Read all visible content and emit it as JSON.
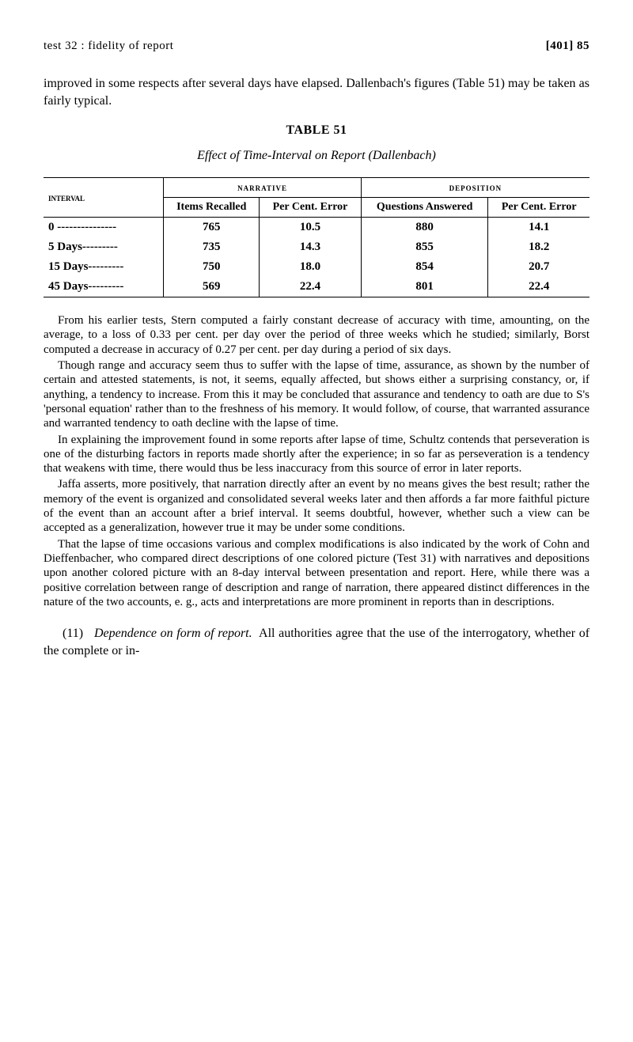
{
  "header": {
    "left": "test 32 : fidelity of report",
    "right": "[401] 85"
  },
  "intro": "improved in some respects after several days have elapsed. Dallenbach's figures (Table 51) may be taken as fairly typical.",
  "table": {
    "title": "TABLE 51",
    "caption": "Effect of Time-Interval on Report (Dallenbach)",
    "interval_header": "interval",
    "groups": [
      "narrative",
      "deposition"
    ],
    "columns": [
      "Items Recalled",
      "Per Cent. Error",
      "Questions Answered",
      "Per Cent. Error"
    ],
    "rows": [
      {
        "interval": "0 ---------------",
        "cells": [
          "765",
          "10.5",
          "880",
          "14.1"
        ]
      },
      {
        "interval": "5 Days---------",
        "cells": [
          "735",
          "14.3",
          "855",
          "18.2"
        ]
      },
      {
        "interval": "15 Days---------",
        "cells": [
          "750",
          "18.0",
          "854",
          "20.7"
        ]
      },
      {
        "interval": "45 Days---------",
        "cells": [
          "569",
          "22.4",
          "801",
          "22.4"
        ]
      }
    ]
  },
  "paras": {
    "p1": "From his earlier tests, Stern computed a fairly constant decrease of accuracy with time, amounting, on the average, to a loss of 0.33 per cent. per day over the period of three weeks which he studied; similarly, Borst computed a decrease in accuracy of 0.27 per cent. per day during a period of six days.",
    "p2": "Though range and accuracy seem thus to suffer with the lapse of time, assurance, as shown by the number of certain and attested statements, is not, it seems, equally affected, but shows either a surprising constancy, or, if anything, a tendency to increase. From this it may be concluded that assurance and tendency to oath are due to S's 'personal equation' rather than to the freshness of his memory. It would follow, of course, that warranted assurance and warranted tendency to oath decline with the lapse of time.",
    "p3": "In explaining the improvement found in some reports after lapse of time, Schultz contends that perseveration is one of the disturbing factors in reports made shortly after the experience; in so far as perseveration is a tendency that weakens with time, there would thus be less inaccuracy from this source of error in later reports.",
    "p4": "Jaffa asserts, more positively, that narration directly after an event by no means gives the best result; rather the memory of the event is organized and consolidated several weeks later and then affords a far more faithful picture of the event than an account after a brief interval. It seems doubtful, however, whether such a view can be accepted as a generalization, however true it may be under some conditions.",
    "p5": "That the lapse of time occasions various and complex modifications is also indicated by the work of Cohn and Dieffenbacher, who compared direct descriptions of one colored picture (Test 31) with narratives and depositions upon another colored picture with an 8-day interval between presentation and report. Here, while there was a positive correlation between range of description and range of narration, there appeared distinct differences in the nature of the two accounts, e. g., acts and interpretations are more prominent in reports than in descriptions."
  },
  "section11": {
    "num": "(11)",
    "title": "Dependence on form of report.",
    "text": "All authorities agree that the use of the interrogatory, whether of the complete or in-"
  }
}
